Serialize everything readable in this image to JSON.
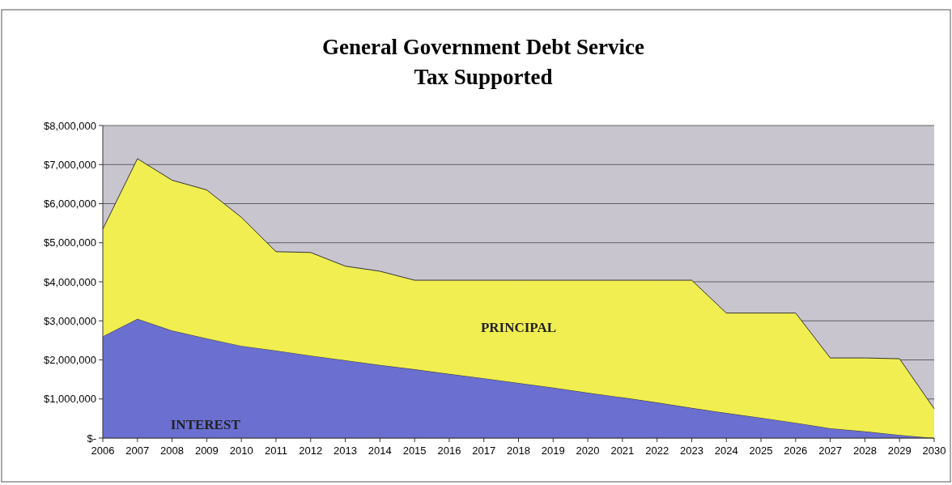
{
  "chart_data": {
    "type": "area",
    "title": "General Government Debt Service",
    "subtitle": "Tax Supported",
    "stacked": true,
    "grid": "y",
    "x": [
      2006,
      2007,
      2008,
      2009,
      2010,
      2011,
      2012,
      2013,
      2014,
      2015,
      2016,
      2017,
      2018,
      2019,
      2020,
      2021,
      2022,
      2023,
      2024,
      2025,
      2026,
      2027,
      2028,
      2029,
      2030
    ],
    "xlim": [
      2006,
      2030
    ],
    "xticks": [
      2006,
      2007,
      2008,
      2009,
      2010,
      2011,
      2012,
      2013,
      2014,
      2015,
      2016,
      2017,
      2018,
      2019,
      2020,
      2021,
      2022,
      2023,
      2024,
      2025,
      2026,
      2027,
      2028,
      2029,
      2030
    ],
    "ylim": [
      0,
      8000000
    ],
    "yticks": [
      {
        "value": 0,
        "label": "$-"
      },
      {
        "value": 1000000,
        "label": "$1,000,000"
      },
      {
        "value": 2000000,
        "label": "$2,000,000"
      },
      {
        "value": 3000000,
        "label": "$3,000,000"
      },
      {
        "value": 4000000,
        "label": "$4,000,000"
      },
      {
        "value": 5000000,
        "label": "$5,000,000"
      },
      {
        "value": 6000000,
        "label": "$6,000,000"
      },
      {
        "value": 7000000,
        "label": "$7,000,000"
      },
      {
        "value": 8000000,
        "label": "$8,000,000"
      }
    ],
    "series": [
      {
        "name": "INTEREST",
        "color": "#6a6fd0",
        "values": [
          2600000,
          3050000,
          2750000,
          2550000,
          2360000,
          2240000,
          2110000,
          1990000,
          1870000,
          1760000,
          1640000,
          1530000,
          1410000,
          1290000,
          1160000,
          1040000,
          910000,
          770000,
          640000,
          520000,
          390000,
          250000,
          170000,
          80000,
          0
        ]
      },
      {
        "name": "PRINCIPAL",
        "color": "#f0ee50",
        "values": [
          2750000,
          4100000,
          3850000,
          3800000,
          3290000,
          2530000,
          2640000,
          2410000,
          2400000,
          2280000,
          2400000,
          2510000,
          2630000,
          2750000,
          2880000,
          3000000,
          3130000,
          3270000,
          2560000,
          2680000,
          2810000,
          1800000,
          1880000,
          1950000,
          750000
        ]
      }
    ]
  }
}
